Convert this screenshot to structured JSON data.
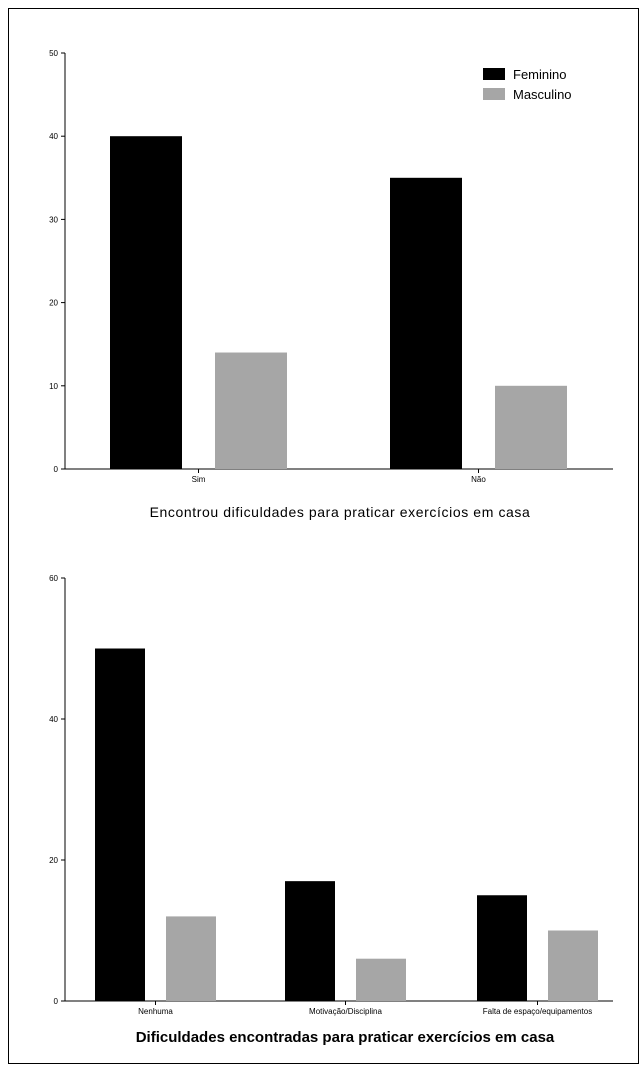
{
  "chart_data": [
    {
      "type": "bar",
      "title": "Encontrou dificuldades para praticar exercícios em casa",
      "categories": [
        "Sim",
        "Não"
      ],
      "series": [
        {
          "name": "Feminino",
          "values": [
            40,
            35
          ],
          "color": "#000000"
        },
        {
          "name": "Masculino",
          "values": [
            14,
            10
          ],
          "color": "#a6a6a6"
        }
      ],
      "ylim": [
        0,
        50
      ],
      "yticks": [
        "0",
        "10",
        "20",
        "30",
        "40",
        "50"
      ],
      "legend": "top-right",
      "grid": false
    },
    {
      "type": "bar",
      "title": "Dificuldades encontradas para praticar exercícios em casa",
      "categories": [
        "Nenhuma",
        "Motivação/Disciplina",
        "Falta de espaço/equipamentos"
      ],
      "series": [
        {
          "name": "Feminino",
          "values": [
            50,
            17,
            15
          ],
          "color": "#000000"
        },
        {
          "name": "Masculino",
          "values": [
            12,
            6,
            10
          ],
          "color": "#a6a6a6"
        }
      ],
      "ylim": [
        0,
        60
      ],
      "yticks": [
        "0",
        "20",
        "40",
        "60"
      ],
      "legend": "none",
      "grid": false
    }
  ]
}
